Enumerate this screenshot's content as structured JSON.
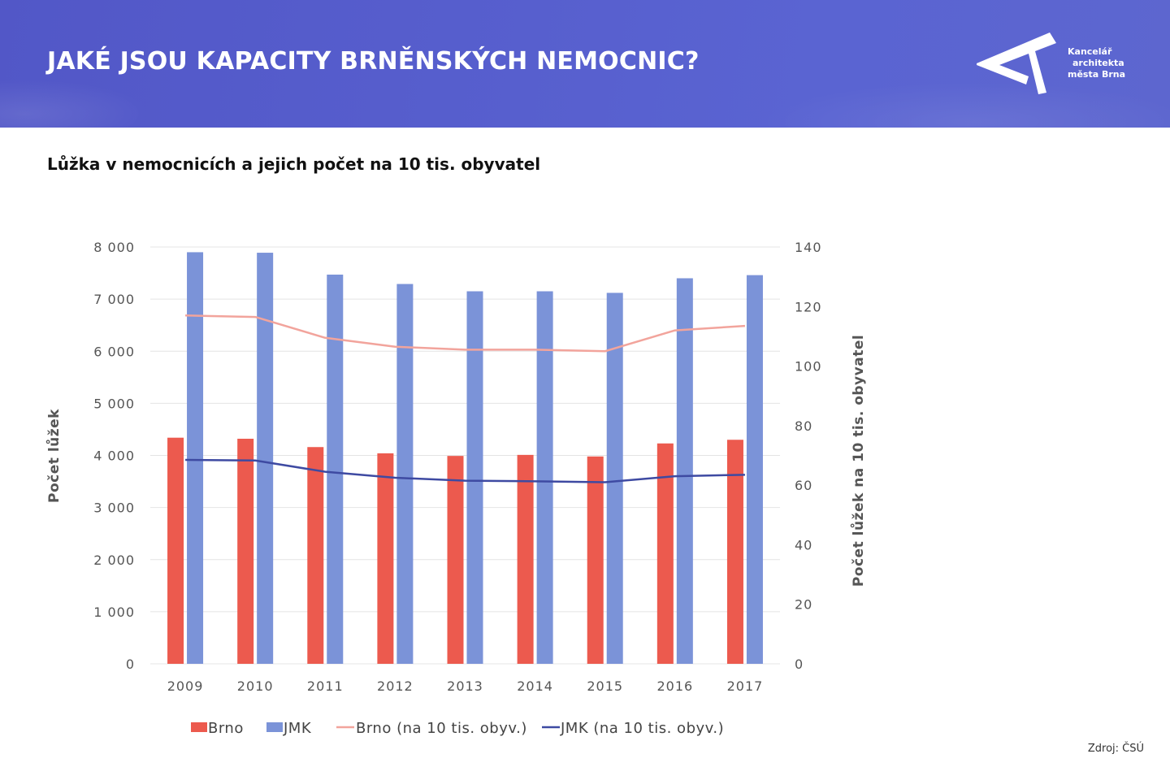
{
  "header": {
    "title": "JAKÉ JSOU KAPACITY BRNĚNSKÝCH NEMOCNIC?",
    "logo": {
      "icon": "kam-a-logo-icon",
      "lines": [
        "Kancelář",
        "architekta",
        "města Brna"
      ]
    }
  },
  "colors": {
    "header_bg": "#5860cf",
    "brno": "#ec5a4e",
    "jmk": "#7b93d8",
    "brno_line": "#f2a49c",
    "jmk_line": "#3e4aa2",
    "grid": "#e4e4e4",
    "axis_text": "#555555"
  },
  "subtitle": "Lůžka v nemocnicích a jejich počet na 10 tis. obyvatel",
  "source": "Zdroj: ČSÚ",
  "chart_data": {
    "type": "bar",
    "categories": [
      "2009",
      "2010",
      "2011",
      "2012",
      "2013",
      "2014",
      "2015",
      "2016",
      "2017"
    ],
    "series": [
      {
        "name": "Brno",
        "type": "bar",
        "axis": "left",
        "values": [
          4340,
          4320,
          4160,
          4040,
          3990,
          4010,
          3980,
          4230,
          4300
        ]
      },
      {
        "name": "JMK",
        "type": "bar",
        "axis": "left",
        "values": [
          7900,
          7890,
          7470,
          7290,
          7150,
          7150,
          7120,
          7400,
          7460
        ]
      },
      {
        "name": "Brno (na 10 tis. obyv.)",
        "type": "line",
        "axis": "right",
        "values": [
          117,
          116.5,
          109.5,
          106.5,
          105.5,
          105.5,
          105,
          112,
          113.5
        ]
      },
      {
        "name": "JMK (na 10 tis. obyv.)",
        "type": "line",
        "axis": "right",
        "values": [
          68.5,
          68.3,
          64.5,
          62.5,
          61.5,
          61.3,
          61.0,
          63.0,
          63.5
        ]
      }
    ],
    "y_left": {
      "label": "Počet lůžek",
      "ylim": [
        0,
        8000
      ],
      "ticks": [
        0,
        1000,
        2000,
        3000,
        4000,
        5000,
        6000,
        7000,
        8000
      ],
      "tick_labels": [
        "0",
        "1 000",
        "2 000",
        "3 000",
        "4 000",
        "5 000",
        "6 000",
        "7 000",
        "8 000"
      ]
    },
    "y_right": {
      "label": "Počet lůžek na 10 tis. obyvatel",
      "ylim": [
        0,
        140
      ],
      "ticks": [
        0,
        20,
        40,
        60,
        80,
        100,
        120,
        140
      ],
      "tick_labels": [
        "0",
        "20",
        "40",
        "60",
        "80",
        "100",
        "120",
        "140"
      ]
    },
    "grid": true,
    "legend_position": "bottom"
  }
}
